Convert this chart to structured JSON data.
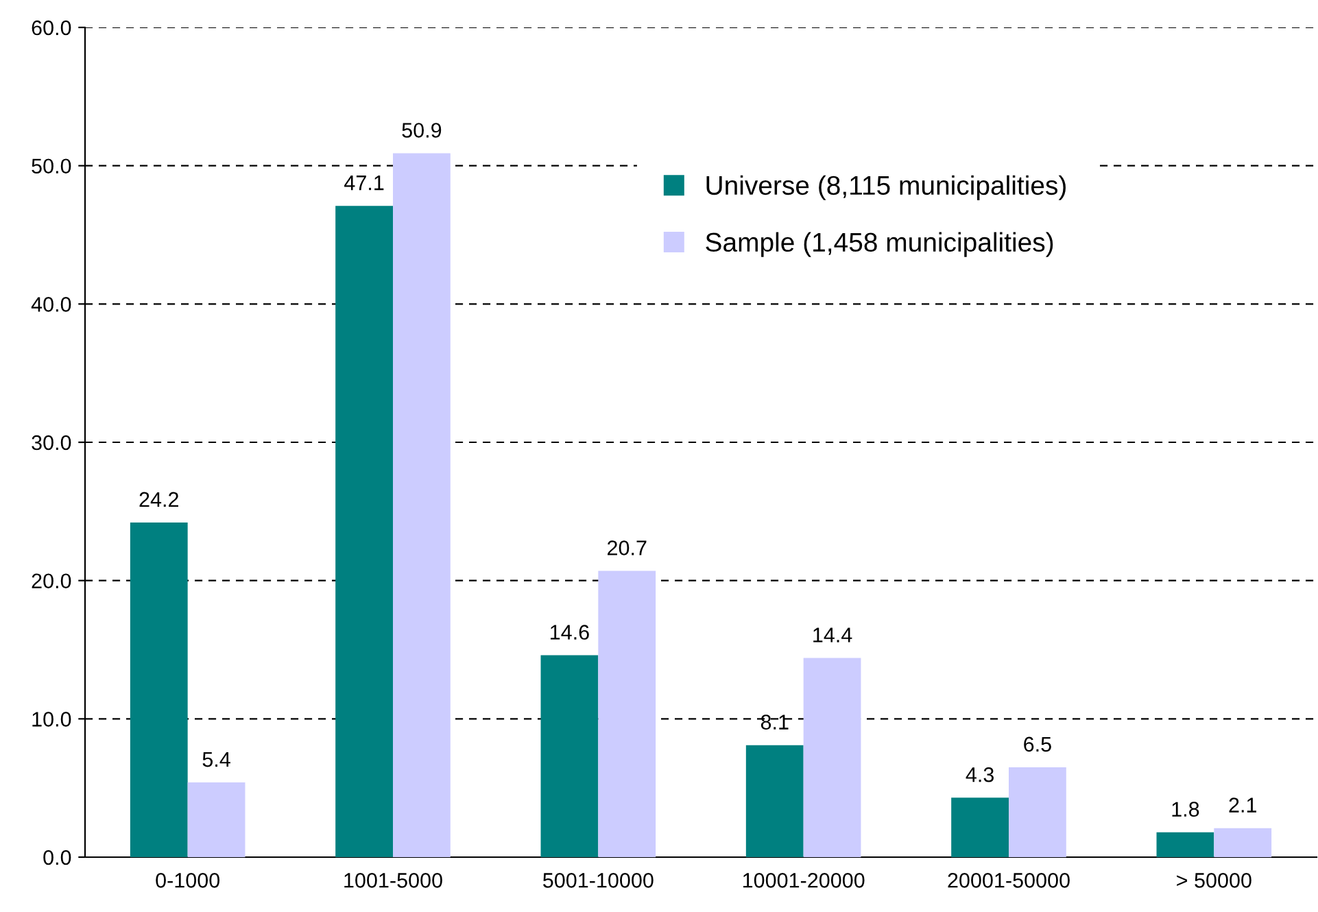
{
  "chart_data": {
    "type": "bar",
    "categories": [
      "0-1000",
      "1001-5000",
      "5001-10000",
      "10001-20000",
      "20001-50000",
      "> 50000"
    ],
    "series": [
      {
        "name": "Universe (8,115 municipalities)",
        "color": "#008080",
        "values": [
          24.2,
          47.1,
          14.6,
          8.1,
          4.3,
          1.8
        ]
      },
      {
        "name": "Sample (1,458 municipalities)",
        "color": "#ccccff",
        "values": [
          5.4,
          50.9,
          20.7,
          14.4,
          6.5,
          2.1
        ]
      }
    ],
    "ylim": [
      0,
      60
    ],
    "yticks": [
      {
        "value": 0,
        "label": "0.0"
      },
      {
        "value": 10,
        "label": "10.0"
      },
      {
        "value": 20,
        "label": "20.0"
      },
      {
        "value": 30,
        "label": "30.0"
      },
      {
        "value": 40,
        "label": "40.0"
      },
      {
        "value": 50,
        "label": "50.0"
      },
      {
        "value": 60,
        "label": "60.0"
      }
    ],
    "grid": "y",
    "legend": "top right",
    "data_labels": true
  }
}
